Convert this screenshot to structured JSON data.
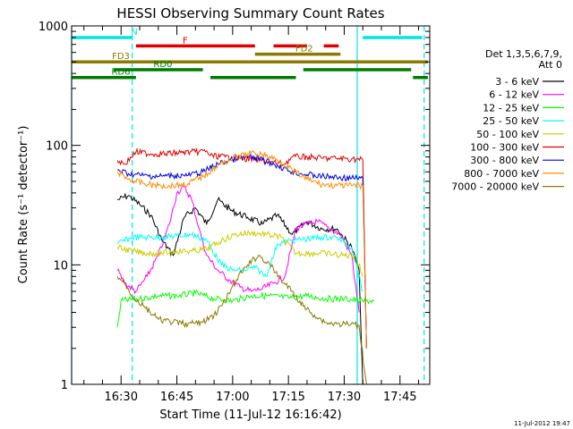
{
  "chart_data": {
    "type": "line",
    "title": "HESSI Observing Summary Count Rates",
    "xlabel": "Start Time (11-Jul-12 16:16:42)",
    "ylabel": "Count Rate (s⁻¹ detector⁻¹)",
    "y_scale": "log",
    "ylim": [
      1,
      1000
    ],
    "xlim_minutes": [
      16.7,
      113.0
    ],
    "x_ticks": [
      {
        "label": "16:30",
        "min": 30
      },
      {
        "label": "16:45",
        "min": 45
      },
      {
        "label": "17:00",
        "min": 60
      },
      {
        "label": "17:15",
        "min": 75
      },
      {
        "label": "17:30",
        "min": 90
      },
      {
        "label": "17:45",
        "min": 105
      }
    ],
    "y_ticks": [
      {
        "label": "1",
        "value": 1
      },
      {
        "label": "10",
        "value": 10
      },
      {
        "label": "100",
        "value": 100
      },
      {
        "label": "1000",
        "value": 1000
      }
    ],
    "legend": {
      "placement": "right",
      "header": [
        "Det 1,3,5,6,7,9,",
        "Att 0"
      ]
    },
    "grid": false,
    "footer_timestamp": "11-Jul-2012 19:47",
    "vertical_lines": [
      {
        "min": 16.7,
        "style": "solid"
      },
      {
        "min": 33.0,
        "style": "dashed"
      },
      {
        "min": 93.5,
        "style": "solid"
      },
      {
        "min": 111.5,
        "style": "dashed"
      }
    ],
    "flags": [
      {
        "label": "N",
        "color": "#00e5e5",
        "level": 800,
        "segments": [
          [
            16.7,
            33.0
          ],
          [
            95.0,
            111.0
          ]
        ]
      },
      {
        "label": "F",
        "color": "#e00000",
        "level": 680,
        "segments": [
          [
            34.0,
            66.0
          ],
          [
            71.0,
            80.0
          ],
          [
            84.5,
            88.5
          ]
        ]
      },
      {
        "label": "FD2",
        "color": "#8a7a00",
        "level": 580,
        "segments": [
          [
            66.0,
            89.0
          ]
        ]
      },
      {
        "label": "FD3",
        "color": "#8a7a00",
        "level": 500,
        "segments": [
          [
            16.7,
            112.5
          ]
        ]
      },
      {
        "label": "RD0",
        "color": "#007a00",
        "level": 430,
        "segments": [
          [
            28.0,
            52.0
          ],
          [
            79.0,
            108.0
          ]
        ]
      },
      {
        "label": "RD6",
        "color": "#007a00",
        "level": 370,
        "segments": [
          [
            16.7,
            34.0
          ],
          [
            54.0,
            77.0
          ],
          [
            108.5,
            112.5
          ]
        ]
      }
    ],
    "series": [
      {
        "name": "3 - 6 keV",
        "color": "#000000",
        "x": [
          29,
          32,
          35,
          38,
          41,
          44,
          47,
          50,
          53,
          56,
          60,
          64,
          68,
          72,
          76,
          80,
          84,
          88,
          92,
          94,
          95
        ],
        "y": [
          35,
          38,
          32,
          26,
          16,
          12,
          25,
          30,
          22,
          35,
          28,
          25,
          22,
          26,
          18,
          23,
          20,
          20,
          14,
          9,
          1
        ]
      },
      {
        "name": "6 - 12 keV",
        "color": "#ff00ff",
        "x": [
          29,
          31,
          34,
          37,
          40,
          43,
          45,
          47,
          49,
          51,
          53,
          56,
          59,
          62,
          65,
          68,
          71,
          74,
          77,
          80,
          83,
          86,
          89,
          92,
          94
        ],
        "y": [
          9,
          7,
          6,
          8,
          12,
          22,
          40,
          45,
          35,
          20,
          12,
          9,
          7.5,
          6.5,
          6,
          6.3,
          7,
          8,
          20,
          22,
          23,
          20,
          18,
          12,
          4
        ]
      },
      {
        "name": "12 - 25 keV",
        "color": "#00ff00",
        "x": [
          29,
          30,
          35,
          40,
          45,
          50,
          55,
          60,
          65,
          70,
          75,
          80,
          85,
          90,
          95,
          98
        ],
        "y": [
          3,
          5,
          5.2,
          5.5,
          5.5,
          5.8,
          5.2,
          5,
          5.5,
          5.5,
          5.3,
          5.5,
          5.2,
          5.2,
          5,
          5
        ]
      },
      {
        "name": "25 - 50 keV",
        "color": "#00ffff",
        "x": [
          29,
          33,
          37,
          41,
          45,
          49,
          53,
          57,
          60,
          63,
          66,
          69,
          72,
          76,
          80,
          84,
          88,
          92,
          95
        ],
        "y": [
          15,
          17,
          17,
          17,
          17.5,
          18,
          16,
          10,
          9,
          9,
          9.5,
          8,
          15,
          16,
          16.5,
          17,
          17,
          14,
          6
        ]
      },
      {
        "name": "50 - 100 keV",
        "color": "#cccc00",
        "x": [
          29,
          33,
          37,
          41,
          45,
          49,
          53,
          57,
          61,
          65,
          69,
          73,
          77,
          81,
          85,
          89,
          93,
          95
        ],
        "y": [
          14,
          13,
          12.5,
          12.5,
          13,
          13,
          13.5,
          16,
          18,
          18.5,
          18,
          17,
          12.5,
          12.5,
          12.5,
          12,
          12,
          8
        ]
      },
      {
        "name": "100 - 300 keV",
        "color": "#e00000",
        "x": [
          29,
          31,
          34,
          38,
          42,
          46,
          50,
          53,
          54,
          58,
          62,
          66,
          70,
          74,
          76,
          80,
          84,
          88,
          92,
          95,
          96
        ],
        "y": [
          75,
          70,
          88,
          85,
          85,
          87,
          88,
          90,
          82,
          80,
          78,
          76,
          72,
          70,
          80,
          80,
          78,
          78,
          77,
          76,
          2
        ]
      },
      {
        "name": "300 - 800 keV",
        "color": "#0000e0",
        "x": [
          29,
          32,
          36,
          40,
          44,
          48,
          52,
          56,
          60,
          64,
          68,
          72,
          76,
          80,
          84,
          88,
          92,
          95,
          96
        ],
        "y": [
          62,
          58,
          56,
          55,
          56,
          56,
          60,
          70,
          76,
          80,
          76,
          68,
          60,
          57,
          55,
          54,
          53,
          53,
          2
        ]
      },
      {
        "name": "800 - 7000 keV",
        "color": "#ff8c00",
        "x": [
          29,
          32,
          36,
          40,
          44,
          48,
          52,
          56,
          60,
          64,
          66,
          68,
          72,
          76,
          80,
          84,
          88,
          92,
          95,
          96
        ],
        "y": [
          60,
          52,
          48,
          46,
          46,
          48,
          55,
          68,
          78,
          85,
          86,
          84,
          76,
          62,
          52,
          47,
          46,
          46,
          46,
          2
        ]
      },
      {
        "name": "7000 - 20000 keV",
        "color": "#8a7a00",
        "x": [
          29,
          31,
          33,
          36,
          40,
          44,
          48,
          52,
          55,
          58,
          61,
          64,
          67,
          70,
          73,
          76,
          79,
          82,
          85,
          88,
          91,
          94,
          96
        ],
        "y": [
          8,
          7,
          5.5,
          4.5,
          3.5,
          3.3,
          3.2,
          3.3,
          3.8,
          5,
          7.5,
          10,
          12,
          10,
          7.5,
          6,
          4.5,
          3.8,
          3.3,
          3.2,
          3.2,
          3.1,
          1
        ]
      }
    ]
  }
}
